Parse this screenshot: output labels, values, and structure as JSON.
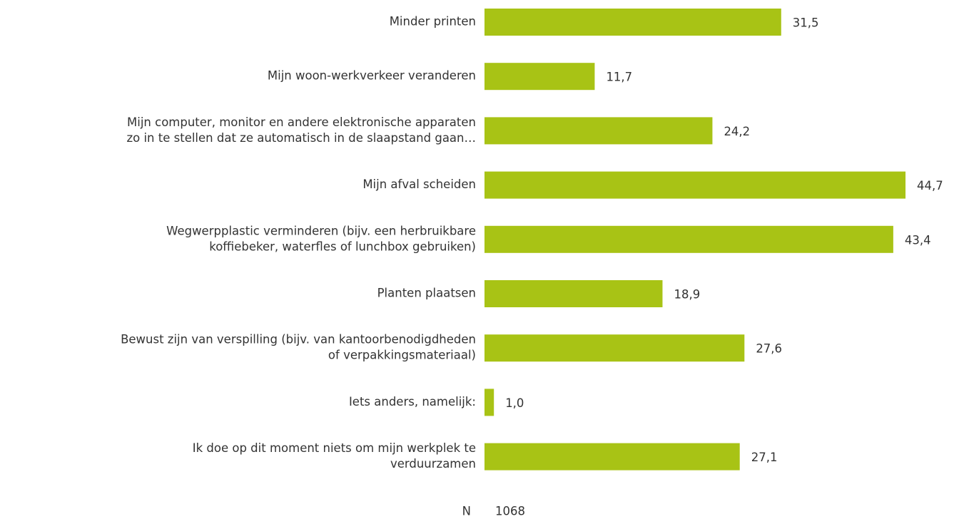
{
  "chart_data": {
    "type": "bar",
    "orientation": "horizontal",
    "color": "#a8c315",
    "categories": [
      [
        "Minder printen"
      ],
      [
        "Mijn woon-werkverkeer veranderen"
      ],
      [
        "Mijn computer, monitor en andere elektronische apparaten",
        "zo in te stellen dat ze automatisch in de slaapstand gaan…"
      ],
      [
        "Mijn afval scheiden"
      ],
      [
        "Wegwerpplastic verminderen (bijv. een herbruikbare",
        "koffiebeker, waterfles of lunchbox gebruiken)"
      ],
      [
        "Planten plaatsen"
      ],
      [
        "Bewust zijn van verspilling (bijv. van kantoorbenodigdheden",
        "of verpakkingsmateriaal)"
      ],
      [
        "Iets anders, namelijk:"
      ],
      [
        "Ik doe op dit moment niets om mijn werkplek te",
        "verduurzamen"
      ]
    ],
    "values": [
      31.5,
      11.7,
      24.2,
      44.7,
      43.4,
      18.9,
      27.6,
      1.0,
      27.1
    ],
    "value_labels": [
      "31,5",
      "11,7",
      "24,2",
      "44,7",
      "43,4",
      "18,9",
      "27,6",
      "1,0",
      "27,1"
    ],
    "n_label": "N",
    "n": 1068
  }
}
